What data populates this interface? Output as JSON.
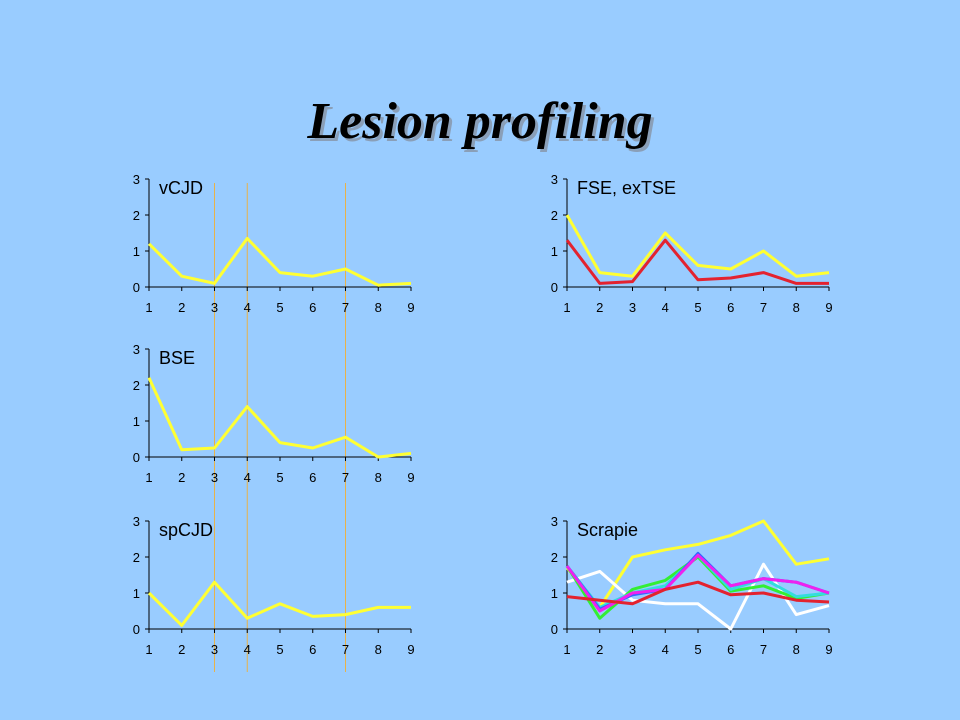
{
  "slide": {
    "title": "Lesion profiling"
  },
  "colors": {
    "background": "#99ccff",
    "axis": "#000000",
    "refLine": "#e8b24a",
    "yellow": "#ffff33",
    "red": "#e3222f",
    "green": "#33ee33",
    "magenta": "#ee22ee",
    "white": "#ffffff",
    "cyan": "#33dddd",
    "blue": "#3366ff"
  },
  "chart_data": [
    {
      "type": "line",
      "title": "vCJD",
      "x": [
        1,
        2,
        3,
        4,
        5,
        6,
        7,
        8,
        9
      ],
      "ylim": [
        0,
        3
      ],
      "yticks": [
        0,
        1,
        2,
        3
      ],
      "ref_lines_x": [
        3,
        4,
        7
      ],
      "series": [
        {
          "color": "yellow",
          "values": [
            1.2,
            0.3,
            0.1,
            1.35,
            0.4,
            0.3,
            0.5,
            0.05,
            0.1
          ]
        }
      ]
    },
    {
      "type": "line",
      "title": "FSE, exTSE",
      "x": [
        1,
        2,
        3,
        4,
        5,
        6,
        7,
        8,
        9
      ],
      "ylim": [
        0,
        3
      ],
      "yticks": [
        0,
        1,
        2,
        3
      ],
      "series": [
        {
          "color": "yellow",
          "values": [
            2.0,
            0.4,
            0.3,
            1.5,
            0.6,
            0.5,
            1.0,
            0.3,
            0.4
          ]
        },
        {
          "color": "red",
          "values": [
            1.3,
            0.1,
            0.15,
            1.3,
            0.2,
            0.25,
            0.4,
            0.1,
            0.1
          ]
        }
      ]
    },
    {
      "type": "line",
      "title": "BSE",
      "x": [
        1,
        2,
        3,
        4,
        5,
        6,
        7,
        8,
        9
      ],
      "ylim": [
        0,
        3
      ],
      "yticks": [
        0,
        1,
        2,
        3
      ],
      "ref_lines_x": [
        3,
        4,
        7
      ],
      "series": [
        {
          "color": "yellow",
          "values": [
            2.2,
            0.2,
            0.25,
            1.4,
            0.4,
            0.25,
            0.55,
            0.0,
            0.1
          ]
        }
      ]
    },
    {
      "type": "line",
      "title": "spCJD",
      "x": [
        1,
        2,
        3,
        4,
        5,
        6,
        7,
        8,
        9
      ],
      "ylim": [
        0,
        3
      ],
      "yticks": [
        0,
        1,
        2,
        3
      ],
      "ref_lines_x": [
        3,
        4,
        7
      ],
      "series": [
        {
          "color": "yellow",
          "values": [
            1.0,
            0.1,
            1.3,
            0.3,
            0.7,
            0.35,
            0.4,
            0.6,
            0.6
          ]
        }
      ]
    },
    {
      "type": "line",
      "title": "Scrapie",
      "x": [
        1,
        2,
        3,
        4,
        5,
        6,
        7,
        8,
        9
      ],
      "ylim": [
        0,
        3
      ],
      "yticks": [
        0,
        1,
        2,
        3
      ],
      "series": [
        {
          "color": "yellow",
          "values": [
            1.7,
            0.6,
            2.0,
            2.2,
            2.35,
            2.6,
            3.0,
            1.8,
            1.95
          ]
        },
        {
          "color": "white",
          "values": [
            1.3,
            1.6,
            0.8,
            0.7,
            0.7,
            0.0,
            1.8,
            0.4,
            0.65
          ]
        },
        {
          "color": "green",
          "values": [
            1.75,
            0.3,
            1.1,
            1.35,
            2.0,
            1.05,
            1.2,
            0.85,
            1.0
          ]
        },
        {
          "color": "cyan",
          "values": [
            1.75,
            0.6,
            1.0,
            1.2,
            2.05,
            1.1,
            1.4,
            0.9,
            1.0
          ]
        },
        {
          "color": "blue",
          "values": [
            1.75,
            0.55,
            0.95,
            1.1,
            2.1,
            1.2,
            1.4,
            1.3,
            1.0
          ]
        },
        {
          "color": "magenta",
          "values": [
            1.75,
            0.5,
            1.0,
            1.1,
            2.05,
            1.2,
            1.4,
            1.3,
            1.0
          ]
        },
        {
          "color": "red",
          "values": [
            0.9,
            0.8,
            0.7,
            1.1,
            1.3,
            0.95,
            1.0,
            0.8,
            0.75
          ]
        }
      ]
    }
  ]
}
